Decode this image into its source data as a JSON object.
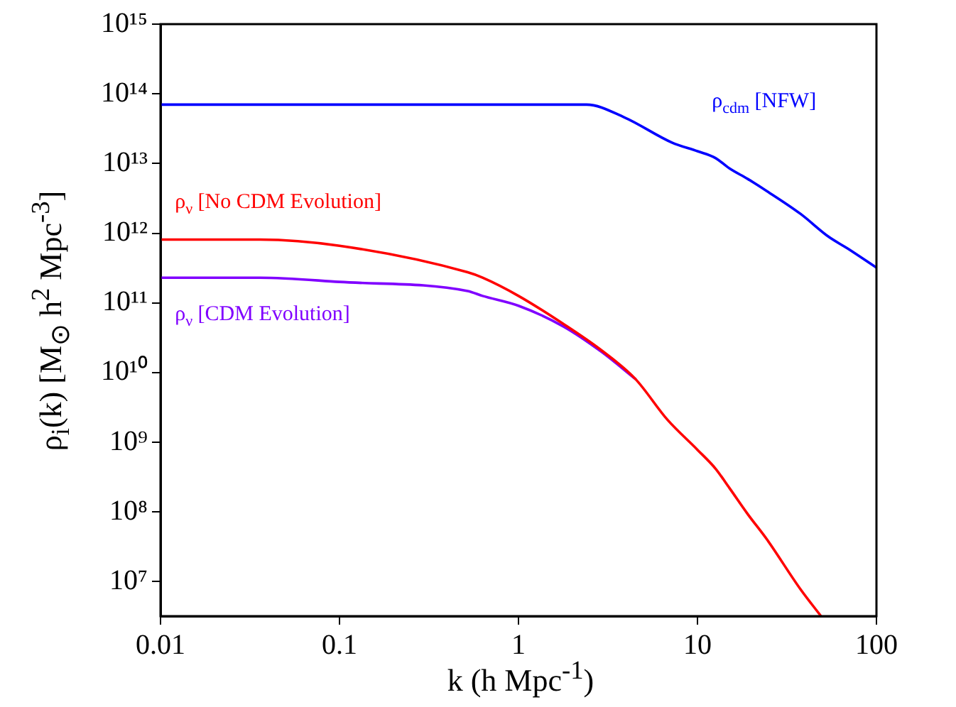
{
  "chart_data": {
    "type": "line",
    "xlabel": "k (h Mpc$^{-1}$)",
    "ylabel": "ρ$_{i}$(k) [M$_{⊙}$ h$^{2}$ Mpc$^{-3}$]",
    "log": "xy",
    "xlim": [
      0.01,
      100
    ],
    "xticks": [
      0.01,
      0.1,
      1,
      10,
      100
    ],
    "ylim": [
      3200000.0,
      1000000000000000.0
    ],
    "yticks": [
      {
        "value": 10000000.0,
        "label": "10⁷"
      },
      {
        "value": 100000000.0,
        "label": "10⁸"
      },
      {
        "value": 1000000000.0,
        "label": "10⁹"
      },
      {
        "value": 10000000000.0,
        "label": "10¹⁰"
      },
      {
        "value": 100000000000.0,
        "label": "10¹¹"
      },
      {
        "value": 1000000000000.0,
        "label": "10¹²"
      },
      {
        "value": 10000000000000.0,
        "label": "10¹³"
      },
      {
        "value": 100000000000000.0,
        "label": "10¹⁴"
      },
      {
        "value": 1000000000000000.0,
        "label": "10¹⁵"
      }
    ],
    "grid": false,
    "legend": false,
    "marker": "none",
    "line_style": "solid",
    "series": [
      {
        "name": "ρ$_{cdm}$ [NFW]",
        "color": "#0000ff",
        "x": [
          0.01,
          0.1,
          1,
          2.4,
          3.9,
          7.2,
          10,
          12.6,
          15.1,
          19.1,
          24.5,
          37.6,
          53.7,
          69.2,
          100
        ],
        "values": [
          70000000000000.0,
          70000000000000.0,
          70000000000000.0,
          70000000000000.0,
          46000000000000.0,
          20000000000000.0,
          15000000000000.0,
          12000000000000.0,
          8500000000000.0,
          6000000000000.0,
          4000000000000.0,
          1900000000000.0,
          900000000000.0,
          600000000000.0,
          320000000000.0
        ]
      },
      {
        "name": "ρ$_{ν}$ [No CDM Evolution]",
        "color": "#ff0000",
        "x": [
          0.01,
          0.036,
          0.1,
          0.52,
          0.63,
          1,
          1.78,
          2.9,
          4.5,
          6.8,
          10,
          12.6,
          15.1,
          19.1,
          24.5,
          37.6,
          49
        ],
        "values": [
          810000000000.0,
          810000000000.0,
          660000000000.0,
          275000000000.0,
          230000000000.0,
          126000000000.0,
          50000000000.0,
          21000000000.0,
          8100000000.0,
          2100000000.0,
          780000000.0,
          420000000.0,
          220000000.0,
          93000000.0,
          40000000.0,
          7800000.0,
          3200000.0
        ]
      },
      {
        "name": "ρ$_{ν}$ [CDM Evolution]",
        "color": "#8000ff",
        "x": [
          0.01,
          0.036,
          0.1,
          0.52,
          0.63,
          1,
          1.78,
          2.9,
          4.5
        ],
        "values": [
          230000000000.0,
          230000000000.0,
          200000000000.0,
          148000000000.0,
          126000000000.0,
          91000000000.0,
          46000000000.0,
          20000000000.0,
          8100000000.0
        ]
      }
    ]
  }
}
